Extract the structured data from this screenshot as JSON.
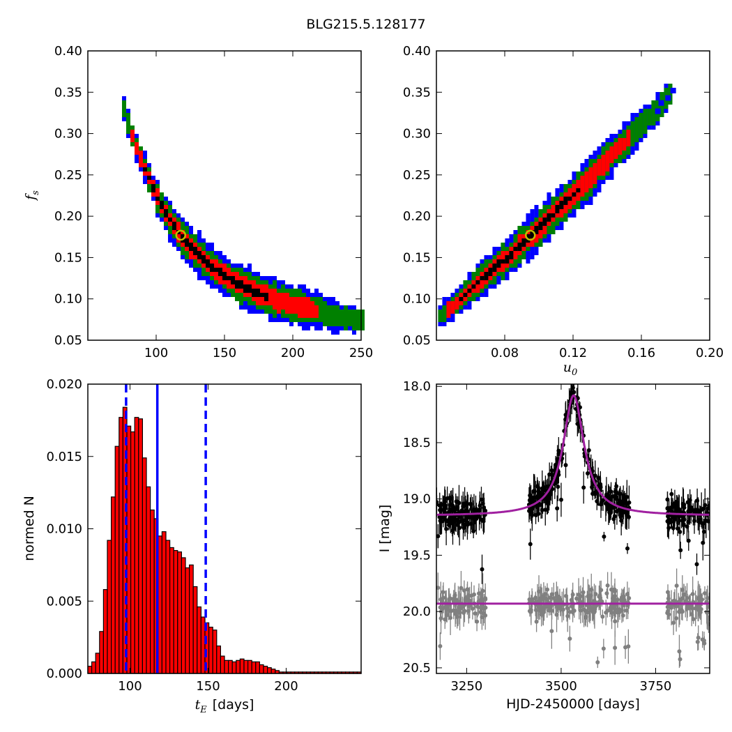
{
  "figure": {
    "title": "BLG215.5.128177"
  },
  "chart_data": [
    {
      "panel": "top-left",
      "type": "heatmap",
      "title": "",
      "xlabel": "",
      "ylabel": "f_s",
      "ylabel_main": "f",
      "ylabel_sub": "s",
      "xlim": [
        50,
        250
      ],
      "ylim": [
        0.05,
        0.4
      ],
      "xticks": [
        100,
        150,
        200,
        250
      ],
      "xticklabels": [
        "100",
        "150",
        "200",
        "250"
      ],
      "yticks": [
        0.05,
        0.1,
        0.15,
        0.2,
        0.25,
        0.3,
        0.35,
        0.4
      ],
      "yticklabels": [
        "0.05",
        "0.10",
        "0.15",
        "0.20",
        "0.25",
        "0.30",
        "0.35",
        "0.40"
      ],
      "best_fit": {
        "x": 118,
        "y": 0.177
      },
      "band_centerline": [
        [
          75,
          0.34
        ],
        [
          80,
          0.31
        ],
        [
          85,
          0.285
        ],
        [
          90,
          0.265
        ],
        [
          95,
          0.245
        ],
        [
          100,
          0.225
        ],
        [
          105,
          0.21
        ],
        [
          110,
          0.196
        ],
        [
          115,
          0.183
        ],
        [
          120,
          0.172
        ],
        [
          130,
          0.155
        ],
        [
          140,
          0.14
        ],
        [
          150,
          0.128
        ],
        [
          160,
          0.118
        ],
        [
          170,
          0.11
        ],
        [
          180,
          0.103
        ],
        [
          190,
          0.097
        ],
        [
          200,
          0.093
        ],
        [
          210,
          0.089
        ],
        [
          220,
          0.085
        ],
        [
          230,
          0.08
        ],
        [
          240,
          0.077
        ],
        [
          250,
          0.075
        ]
      ],
      "levels": [
        {
          "name": "outer",
          "color": "#0000ff"
        },
        {
          "name": "middle",
          "color": "#008000"
        },
        {
          "name": "inner",
          "color": "#ff0000"
        },
        {
          "name": "core",
          "color": "#000000"
        }
      ],
      "marker_color": "#bfbf00",
      "grid": false
    },
    {
      "panel": "top-right",
      "type": "heatmap",
      "title": "",
      "xlabel": "u_0",
      "xlabel_main": "u",
      "xlabel_sub": "0",
      "ylabel": "",
      "xlim": [
        0.04,
        0.2
      ],
      "ylim": [
        0.05,
        0.4
      ],
      "xticks": [
        0.08,
        0.12,
        0.16,
        0.2
      ],
      "xticklabels": [
        "0.08",
        "0.12",
        "0.16",
        "0.20"
      ],
      "yticks": [
        0.05,
        0.1,
        0.15,
        0.2,
        0.25,
        0.3,
        0.35,
        0.4
      ],
      "yticklabels": [
        "0.05",
        "0.10",
        "0.15",
        "0.20",
        "0.25",
        "0.30",
        "0.35",
        "0.40"
      ],
      "best_fit": {
        "x": 0.095,
        "y": 0.177
      },
      "band_centerline": [
        [
          0.041,
          0.077
        ],
        [
          0.05,
          0.092
        ],
        [
          0.06,
          0.112
        ],
        [
          0.07,
          0.13
        ],
        [
          0.08,
          0.147
        ],
        [
          0.09,
          0.167
        ],
        [
          0.1,
          0.185
        ],
        [
          0.11,
          0.205
        ],
        [
          0.12,
          0.225
        ],
        [
          0.13,
          0.245
        ],
        [
          0.14,
          0.268
        ],
        [
          0.15,
          0.288
        ],
        [
          0.16,
          0.31
        ],
        [
          0.17,
          0.33
        ],
        [
          0.178,
          0.35
        ]
      ],
      "levels": [
        {
          "name": "outer",
          "color": "#0000ff"
        },
        {
          "name": "middle",
          "color": "#008000"
        },
        {
          "name": "inner",
          "color": "#ff0000"
        },
        {
          "name": "core",
          "color": "#000000"
        }
      ],
      "marker_color": "#bfbf00",
      "grid": false
    },
    {
      "panel": "bottom-left",
      "type": "bar",
      "title": "",
      "xlabel": "t_E  [days]",
      "xlabel_main": "t",
      "xlabel_sub": "E",
      "xlabel_unit": "[days]",
      "ylabel": "normed N",
      "xlim": [
        73,
        248
      ],
      "ylim": [
        0.0,
        0.02
      ],
      "xticks": [
        100,
        150,
        200
      ],
      "xticklabels": [
        "100",
        "150",
        "200"
      ],
      "yticks": [
        0.0,
        0.005,
        0.01,
        0.015,
        0.02
      ],
      "yticklabels": [
        "0.000",
        "0.005",
        "0.010",
        "0.015",
        "0.020"
      ],
      "bin_start": 73,
      "bin_width": 2.5,
      "values": [
        0.0005,
        0.0008,
        0.0014,
        0.0029,
        0.0058,
        0.0092,
        0.0122,
        0.0157,
        0.0177,
        0.0184,
        0.0171,
        0.0167,
        0.0177,
        0.0176,
        0.0149,
        0.0129,
        0.0113,
        0.0107,
        0.0095,
        0.0098,
        0.0092,
        0.0087,
        0.0085,
        0.0084,
        0.008,
        0.0073,
        0.0075,
        0.006,
        0.0046,
        0.0039,
        0.0035,
        0.0032,
        0.003,
        0.0019,
        0.0012,
        0.0009,
        0.0009,
        0.0008,
        0.0009,
        0.001,
        0.0009,
        0.0009,
        0.0008,
        0.0008,
        0.0006,
        0.0005,
        0.0004,
        0.0003,
        0.0002,
        0.0001,
        0.0001,
        0.0001,
        0.0001,
        0.0001,
        0.0001,
        0.0001,
        0.0001,
        0.0001,
        0.0001,
        0.0001,
        0.0001,
        0.0001,
        0.0001,
        0.0001,
        0.0001,
        0.0001,
        0.0001,
        0.0001,
        0.0001,
        0.0001
      ],
      "bar_color": "#ff0000",
      "edge_color": "#000000",
      "vlines": [
        {
          "x": 97.5,
          "style": "dashed",
          "color": "#0000ff"
        },
        {
          "x": 117.5,
          "style": "solid",
          "color": "#0000ff"
        },
        {
          "x": 148.5,
          "style": "dashed",
          "color": "#0000ff"
        }
      ],
      "grid": false
    },
    {
      "panel": "bottom-right",
      "type": "scatter",
      "title": "",
      "xlabel": "HJD-2450000 [days]",
      "ylabel": "I [mag]",
      "xlim": [
        3170,
        3893
      ],
      "ylim": [
        20.55,
        17.98
      ],
      "y_inverted": true,
      "xticks": [
        3250,
        3500,
        3750
      ],
      "xticklabels": [
        "3250",
        "3500",
        "3750"
      ],
      "yticks": [
        18.0,
        18.5,
        19.0,
        19.5,
        20.0,
        20.5
      ],
      "yticklabels": [
        "18.0",
        "18.5",
        "19.0",
        "19.5",
        "20.0",
        "20.5"
      ],
      "series": [
        {
          "role": "source",
          "color": "#000000",
          "baseline": 19.15,
          "peak_mag": 18.08,
          "t0": 3533,
          "tE": 12,
          "scatter": 0.12,
          "seasons": [
            [
              3170,
              3300
            ],
            [
              3410,
              3680
            ],
            [
              3780,
              3893
            ]
          ]
        },
        {
          "role": "comparison",
          "color": "#808080",
          "baseline": 19.93,
          "scatter": 0.12,
          "seasons": [
            [
              3170,
              3300
            ],
            [
              3410,
              3680
            ],
            [
              3780,
              3893
            ]
          ]
        }
      ],
      "model_color": "#a020a0",
      "grid": false
    }
  ]
}
